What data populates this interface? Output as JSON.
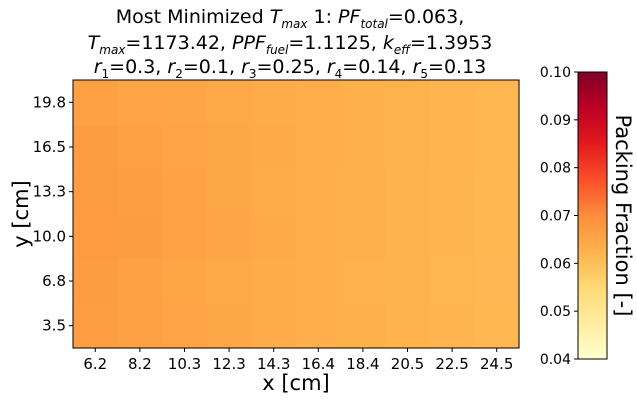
{
  "title": {
    "line1": {
      "pre": "Most Minimized ",
      "tmax_T": "T",
      "tmax_sub": "max",
      "mid": " 1: ",
      "pf_main": "PF",
      "pf_sub": "total",
      "post": "=0.063,"
    },
    "line2": {
      "t_main": "T",
      "t_sub": "max",
      "t_val": "=1173.42, ",
      "ppf_main": "PPF",
      "ppf_sub": "fuel",
      "ppf_val": "=1.1125, ",
      "k_main": "k",
      "k_sub": "eff",
      "k_val": "=1.3953"
    },
    "line3": {
      "r1": "r",
      "r1_sub": "1",
      "r1_val": "=0.3, ",
      "r2": "r",
      "r2_sub": "2",
      "r2_val": "=0.1, ",
      "r3": "r",
      "r3_sub": "3",
      "r3_val": "=0.25, ",
      "r4": "r",
      "r4_sub": "4",
      "r4_val": "=0.14, ",
      "r5": "r",
      "r5_sub": "5",
      "r5_val": "=0.13"
    }
  },
  "chart_data": {
    "type": "heatmap",
    "xlabel": "x [cm]",
    "ylabel": "y [cm]",
    "x_ticks": [
      "6.2",
      "8.2",
      "10.3",
      "12.3",
      "14.3",
      "16.4",
      "18.4",
      "20.5",
      "22.5",
      "24.5"
    ],
    "y_ticks": [
      "19.8",
      "16.5",
      "13.3",
      "10.0",
      "6.8",
      "3.5"
    ],
    "grid": false,
    "colorbar": {
      "label": "Packing Fraction [-]",
      "vmin": 0.04,
      "vmax": 0.1,
      "ticks": [
        "0.10",
        "0.09",
        "0.08",
        "0.07",
        "0.06",
        "0.05",
        "0.04"
      ],
      "colormap": "YlOrRd"
    },
    "values_rows_top_to_bottom": [
      [
        0.066,
        0.0655,
        0.065,
        0.0645,
        0.064,
        0.0635,
        0.063,
        0.0625,
        0.062,
        0.0618
      ],
      [
        0.0668,
        0.0662,
        0.0655,
        0.0648,
        0.0641,
        0.0635,
        0.063,
        0.0625,
        0.062,
        0.0618
      ],
      [
        0.0672,
        0.0665,
        0.0656,
        0.0648,
        0.064,
        0.0634,
        0.0628,
        0.0623,
        0.0619,
        0.0616
      ],
      [
        0.0674,
        0.0667,
        0.0657,
        0.0649,
        0.0641,
        0.0634,
        0.0628,
        0.0623,
        0.0619,
        0.0616
      ],
      [
        0.0668,
        0.066,
        0.0652,
        0.0645,
        0.0638,
        0.0632,
        0.0627,
        0.0622,
        0.0618,
        0.0615
      ],
      [
        0.0665,
        0.0662,
        0.0654,
        0.0647,
        0.064,
        0.0634,
        0.0628,
        0.0623,
        0.0619,
        0.0616
      ]
    ]
  }
}
